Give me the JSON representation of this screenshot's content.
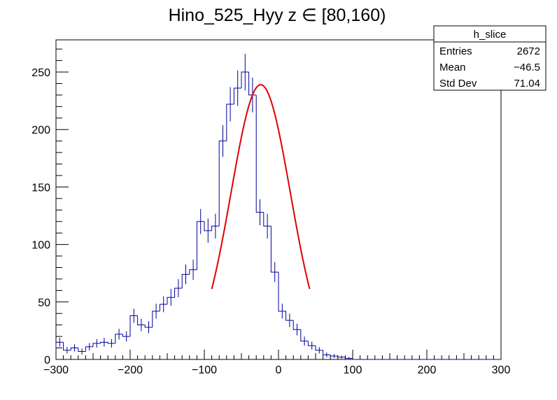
{
  "chart_data": {
    "type": "histogram",
    "title": "Hino_525_Hyy z  ∈ [80,160)",
    "xlabel": "",
    "ylabel": "",
    "xlim": [
      -300,
      300
    ],
    "ylim": [
      0,
      278
    ],
    "x_ticks": [
      -300,
      -200,
      -100,
      0,
      100,
      200,
      300
    ],
    "x_tick_labels": [
      "−300",
      "−200",
      "−100",
      "0",
      "100",
      "200",
      "300"
    ],
    "y_ticks": [
      0,
      50,
      100,
      150,
      200,
      250
    ],
    "y_tick_labels": [
      "0",
      "50",
      "100",
      "150",
      "200",
      "250"
    ],
    "bin_width": 10,
    "bin_edges_start": -300,
    "values": [
      15,
      8,
      10,
      7,
      11,
      14,
      15,
      14,
      22,
      20,
      38,
      30,
      28,
      42,
      48,
      54,
      62,
      74,
      78,
      120,
      112,
      116,
      190,
      222,
      236,
      250,
      230,
      128,
      116,
      76,
      42,
      34,
      26,
      16,
      12,
      8,
      4,
      3,
      2,
      1,
      0,
      0,
      0,
      0,
      0,
      0,
      0,
      0,
      0,
      0,
      0,
      0,
      0,
      0,
      0,
      0,
      0,
      0,
      0,
      0
    ],
    "fit": {
      "type": "gaussian",
      "constant": 239,
      "mean": -24,
      "sigma": 40,
      "range": [
        -90,
        42
      ],
      "color": "#e00000"
    },
    "histogram_color": "#000099",
    "stats_box": {
      "name": "h_slice",
      "rows": [
        {
          "label": "Entries",
          "value": "2672"
        },
        {
          "label": "Mean",
          "value": "−46.5"
        },
        {
          "label": "Std Dev",
          "value": "71.04"
        }
      ]
    }
  }
}
